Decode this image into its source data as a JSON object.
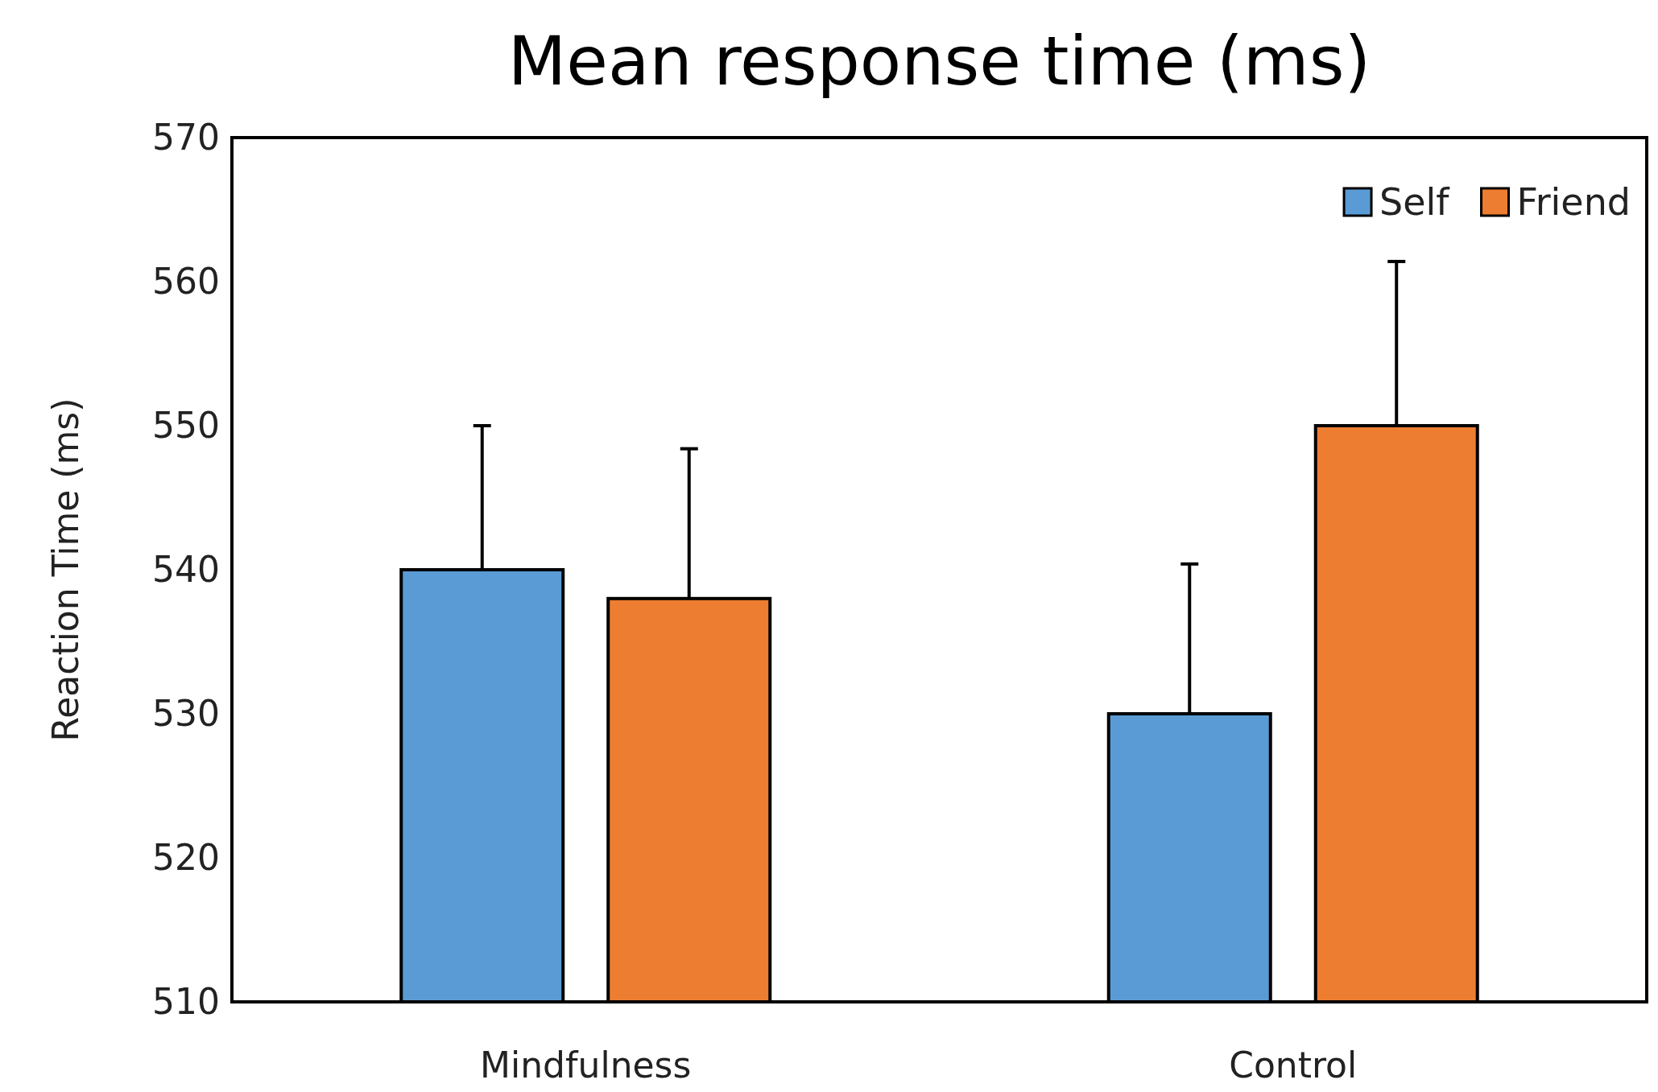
{
  "chart_data": {
    "type": "bar",
    "title": "Mean response time (ms)",
    "ylabel": "Reaction Time (ms)",
    "categories": [
      "Mindfulness",
      "Control"
    ],
    "series": [
      {
        "name": "Self",
        "color": "#5b9bd5",
        "values": [
          540,
          530
        ],
        "errors": [
          [
            540,
            550
          ],
          [
            530,
            540.4
          ]
        ]
      },
      {
        "name": "Friend",
        "color": "#ed7d31",
        "values": [
          538,
          550
        ],
        "errors": [
          [
            538,
            548.4
          ],
          [
            550,
            561.4
          ]
        ]
      }
    ],
    "ylim": [
      510,
      570
    ],
    "yticks": [
      510,
      520,
      530,
      540,
      550,
      560,
      570
    ],
    "grid": false,
    "legend": "top right"
  }
}
